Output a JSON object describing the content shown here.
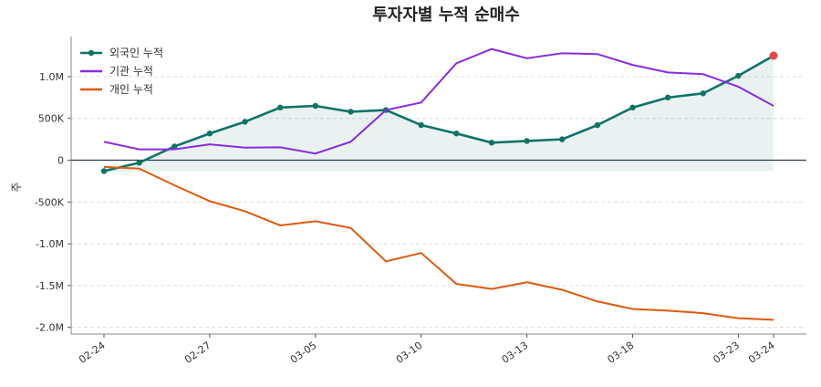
{
  "chart_data": {
    "type": "line",
    "title": "투자자별 누적 순매수",
    "y_label": "주",
    "categories": [
      "02-24",
      null,
      null,
      "02-27",
      null,
      null,
      "03-05",
      null,
      null,
      "03-10",
      null,
      null,
      "03-13",
      null,
      null,
      "03-18",
      null,
      null,
      "03-23",
      "03-24"
    ],
    "series": [
      {
        "name": "외국인 누적",
        "color": "#0f7366",
        "markers": true,
        "fill": true,
        "last_point_color": "#e84545",
        "values": [
          -130000,
          -30000,
          165000,
          320000,
          460000,
          630000,
          650000,
          580000,
          600000,
          420000,
          320000,
          210000,
          230000,
          250000,
          420000,
          630000,
          750000,
          800000,
          1010000,
          1250000
        ]
      },
      {
        "name": "기관 누적",
        "color": "#8a2be2",
        "values": [
          220000,
          130000,
          130000,
          190000,
          150000,
          155000,
          80000,
          220000,
          600000,
          690000,
          1160000,
          1330000,
          1220000,
          1280000,
          1270000,
          1140000,
          1050000,
          1030000,
          880000,
          650000
        ]
      },
      {
        "name": "개인 누적",
        "color": "#e05a0c",
        "values": [
          -80000,
          -100000,
          -300000,
          -490000,
          -610000,
          -780000,
          -730000,
          -810000,
          -1210000,
          -1110000,
          -1480000,
          -1540000,
          -1460000,
          -1550000,
          -1690000,
          -1780000,
          -1800000,
          -1830000,
          -1890000,
          -1910000
        ]
      }
    ],
    "ylim": [
      -2080000,
      1480000
    ],
    "yticks": [
      {
        "value": -2000000,
        "label": "-2.0M"
      },
      {
        "value": -1500000,
        "label": "-1.5M"
      },
      {
        "value": -1000000,
        "label": "-1.0M"
      },
      {
        "value": -500000,
        "label": "-500K"
      },
      0,
      {
        "value": 500000,
        "label": "500K"
      },
      {
        "value": 1000000,
        "label": "1.0M"
      }
    ],
    "grid": true,
    "zero_line": true,
    "legend": "upper-left"
  }
}
